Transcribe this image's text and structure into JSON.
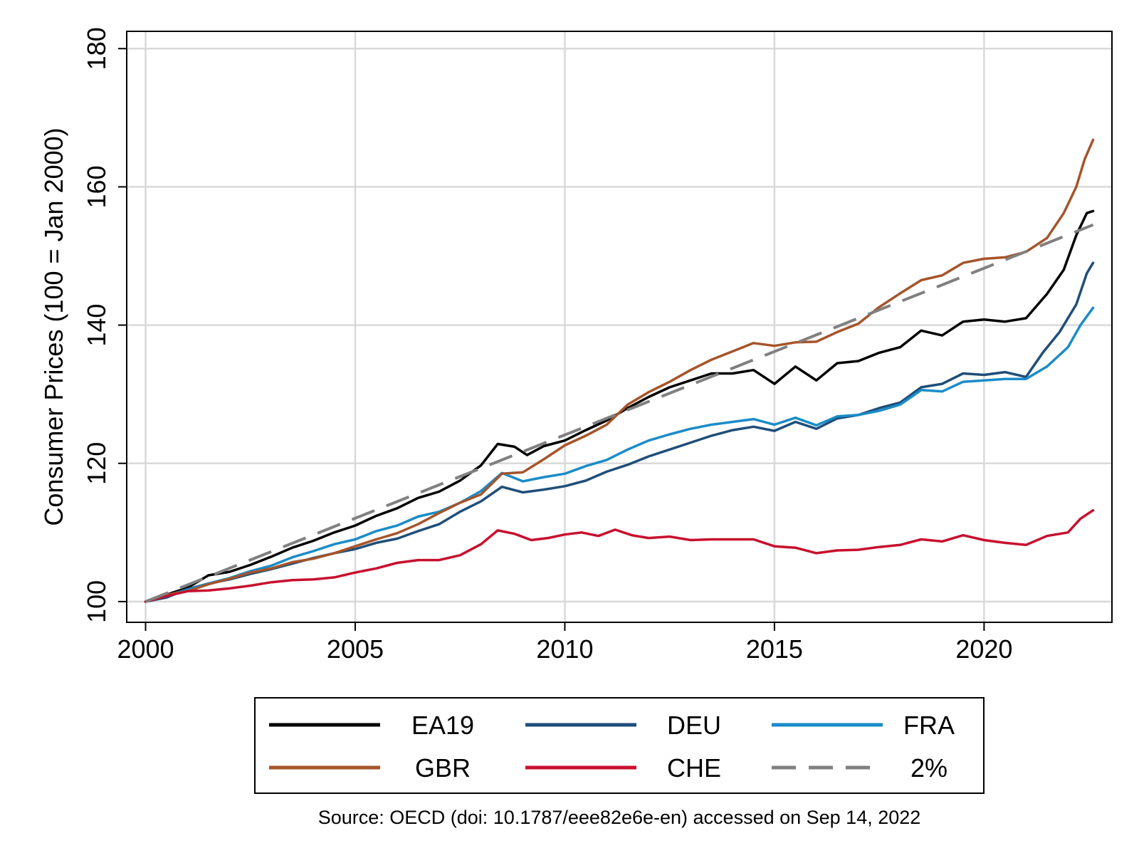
{
  "chart_data": {
    "type": "line",
    "title": "",
    "xlabel": "",
    "ylabel": "Consumer Prices (100 = Jan 2000)",
    "xlim": [
      1999.55,
      2023.05
    ],
    "ylim": [
      97,
      182.5
    ],
    "x_ticks": [
      2000,
      2005,
      2010,
      2015,
      2020
    ],
    "y_ticks": [
      100,
      120,
      140,
      160,
      180
    ],
    "grid": true,
    "legend_position": "bottom",
    "source": "Source: OECD (doi: 10.1787/eee82e6e-en) accessed on Sep 14, 2022",
    "series": [
      {
        "name": "EA19",
        "color": "#000000",
        "dash": false,
        "points": [
          [
            2000.0,
            100.0
          ],
          [
            2000.5,
            101.0
          ],
          [
            2001.0,
            102.0
          ],
          [
            2001.5,
            103.8
          ],
          [
            2002.0,
            104.3
          ],
          [
            2002.5,
            105.3
          ],
          [
            2003.0,
            106.5
          ],
          [
            2003.5,
            107.8
          ],
          [
            2004.0,
            108.8
          ],
          [
            2004.5,
            110.0
          ],
          [
            2005.0,
            111.0
          ],
          [
            2005.5,
            112.4
          ],
          [
            2006.0,
            113.5
          ],
          [
            2006.5,
            115.0
          ],
          [
            2007.0,
            115.9
          ],
          [
            2007.5,
            117.5
          ],
          [
            2008.0,
            119.7
          ],
          [
            2008.4,
            122.8
          ],
          [
            2008.8,
            122.4
          ],
          [
            2009.1,
            121.2
          ],
          [
            2009.5,
            122.5
          ],
          [
            2010.0,
            123.3
          ],
          [
            2010.5,
            124.8
          ],
          [
            2011.0,
            126.2
          ],
          [
            2011.5,
            128.0
          ],
          [
            2012.0,
            129.6
          ],
          [
            2012.5,
            131.0
          ],
          [
            2013.0,
            132.0
          ],
          [
            2013.5,
            133.0
          ],
          [
            2014.0,
            133.0
          ],
          [
            2014.5,
            133.5
          ],
          [
            2015.0,
            131.5
          ],
          [
            2015.5,
            134.0
          ],
          [
            2016.0,
            132.0
          ],
          [
            2016.5,
            134.5
          ],
          [
            2017.0,
            134.8
          ],
          [
            2017.5,
            136.0
          ],
          [
            2018.0,
            136.8
          ],
          [
            2018.5,
            139.2
          ],
          [
            2019.0,
            138.5
          ],
          [
            2019.5,
            140.5
          ],
          [
            2020.0,
            140.8
          ],
          [
            2020.5,
            140.5
          ],
          [
            2021.0,
            141.0
          ],
          [
            2021.5,
            144.5
          ],
          [
            2021.9,
            148.0
          ],
          [
            2022.2,
            153.0
          ],
          [
            2022.45,
            156.2
          ],
          [
            2022.6,
            156.5
          ]
        ]
      },
      {
        "name": "DEU",
        "color": "#1f4e79",
        "dash": false,
        "points": [
          [
            2000.0,
            100.0
          ],
          [
            2000.5,
            100.6
          ],
          [
            2001.0,
            101.8
          ],
          [
            2001.5,
            102.6
          ],
          [
            2002.0,
            103.2
          ],
          [
            2002.5,
            104.0
          ],
          [
            2003.0,
            104.7
          ],
          [
            2003.5,
            105.5
          ],
          [
            2004.0,
            106.3
          ],
          [
            2004.5,
            107.0
          ],
          [
            2005.0,
            107.6
          ],
          [
            2005.5,
            108.5
          ],
          [
            2006.0,
            109.1
          ],
          [
            2006.5,
            110.2
          ],
          [
            2007.0,
            111.2
          ],
          [
            2007.5,
            113.0
          ],
          [
            2008.0,
            114.5
          ],
          [
            2008.5,
            116.6
          ],
          [
            2009.0,
            115.8
          ],
          [
            2009.5,
            116.2
          ],
          [
            2010.0,
            116.7
          ],
          [
            2010.5,
            117.5
          ],
          [
            2011.0,
            118.8
          ],
          [
            2011.5,
            119.8
          ],
          [
            2012.0,
            121.0
          ],
          [
            2012.5,
            122.0
          ],
          [
            2013.0,
            123.0
          ],
          [
            2013.5,
            124.0
          ],
          [
            2014.0,
            124.8
          ],
          [
            2014.5,
            125.3
          ],
          [
            2015.0,
            124.7
          ],
          [
            2015.5,
            126.0
          ],
          [
            2016.0,
            125.0
          ],
          [
            2016.5,
            126.5
          ],
          [
            2017.0,
            127.0
          ],
          [
            2017.5,
            128.0
          ],
          [
            2018.0,
            128.8
          ],
          [
            2018.5,
            131.0
          ],
          [
            2019.0,
            131.5
          ],
          [
            2019.5,
            133.0
          ],
          [
            2020.0,
            132.8
          ],
          [
            2020.5,
            133.2
          ],
          [
            2021.0,
            132.5
          ],
          [
            2021.4,
            136.0
          ],
          [
            2021.8,
            139.0
          ],
          [
            2022.2,
            143.0
          ],
          [
            2022.45,
            147.5
          ],
          [
            2022.6,
            149.0
          ]
        ]
      },
      {
        "name": "FRA",
        "color": "#1a8cc8",
        "dash": false,
        "points": [
          [
            2000.0,
            100.0
          ],
          [
            2000.5,
            100.9
          ],
          [
            2001.0,
            101.7
          ],
          [
            2001.5,
            102.6
          ],
          [
            2002.0,
            103.4
          ],
          [
            2002.5,
            104.4
          ],
          [
            2003.0,
            105.2
          ],
          [
            2003.5,
            106.4
          ],
          [
            2004.0,
            107.3
          ],
          [
            2004.5,
            108.3
          ],
          [
            2005.0,
            109.0
          ],
          [
            2005.5,
            110.2
          ],
          [
            2006.0,
            111.0
          ],
          [
            2006.5,
            112.3
          ],
          [
            2007.0,
            113.0
          ],
          [
            2007.5,
            114.3
          ],
          [
            2008.0,
            116.0
          ],
          [
            2008.5,
            118.6
          ],
          [
            2009.0,
            117.4
          ],
          [
            2009.5,
            118.0
          ],
          [
            2010.0,
            118.5
          ],
          [
            2010.5,
            119.6
          ],
          [
            2011.0,
            120.5
          ],
          [
            2011.5,
            122.0
          ],
          [
            2012.0,
            123.3
          ],
          [
            2012.5,
            124.2
          ],
          [
            2013.0,
            125.0
          ],
          [
            2013.5,
            125.6
          ],
          [
            2014.0,
            126.0
          ],
          [
            2014.5,
            126.4
          ],
          [
            2015.0,
            125.6
          ],
          [
            2015.5,
            126.6
          ],
          [
            2016.0,
            125.5
          ],
          [
            2016.5,
            126.8
          ],
          [
            2017.0,
            127.0
          ],
          [
            2017.5,
            127.6
          ],
          [
            2018.0,
            128.5
          ],
          [
            2018.5,
            130.6
          ],
          [
            2019.0,
            130.4
          ],
          [
            2019.5,
            131.8
          ],
          [
            2020.0,
            132.0
          ],
          [
            2020.5,
            132.2
          ],
          [
            2021.0,
            132.2
          ],
          [
            2021.5,
            134.0
          ],
          [
            2022.0,
            136.8
          ],
          [
            2022.3,
            140.0
          ],
          [
            2022.6,
            142.5
          ]
        ]
      },
      {
        "name": "GBR",
        "color": "#a5542a",
        "dash": false,
        "points": [
          [
            2000.0,
            100.0
          ],
          [
            2000.5,
            101.0
          ],
          [
            2001.0,
            101.5
          ],
          [
            2001.5,
            102.5
          ],
          [
            2002.0,
            103.3
          ],
          [
            2002.5,
            104.2
          ],
          [
            2003.0,
            104.8
          ],
          [
            2003.5,
            105.7
          ],
          [
            2004.0,
            106.2
          ],
          [
            2004.5,
            107.0
          ],
          [
            2005.0,
            108.0
          ],
          [
            2005.5,
            109.0
          ],
          [
            2006.0,
            109.9
          ],
          [
            2006.5,
            111.2
          ],
          [
            2007.0,
            112.8
          ],
          [
            2007.5,
            114.3
          ],
          [
            2008.0,
            115.5
          ],
          [
            2008.5,
            118.5
          ],
          [
            2009.0,
            118.7
          ],
          [
            2009.5,
            120.6
          ],
          [
            2010.0,
            122.6
          ],
          [
            2010.5,
            124.0
          ],
          [
            2011.0,
            125.6
          ],
          [
            2011.5,
            128.5
          ],
          [
            2012.0,
            130.3
          ],
          [
            2012.5,
            131.8
          ],
          [
            2013.0,
            133.5
          ],
          [
            2013.5,
            135.0
          ],
          [
            2014.0,
            136.2
          ],
          [
            2014.5,
            137.4
          ],
          [
            2015.0,
            137.0
          ],
          [
            2015.5,
            137.5
          ],
          [
            2016.0,
            137.6
          ],
          [
            2016.5,
            139.0
          ],
          [
            2017.0,
            140.2
          ],
          [
            2017.5,
            142.6
          ],
          [
            2018.0,
            144.6
          ],
          [
            2018.5,
            146.5
          ],
          [
            2019.0,
            147.2
          ],
          [
            2019.5,
            149.0
          ],
          [
            2020.0,
            149.6
          ],
          [
            2020.5,
            149.8
          ],
          [
            2021.0,
            150.6
          ],
          [
            2021.5,
            152.6
          ],
          [
            2021.9,
            156.2
          ],
          [
            2022.2,
            160.0
          ],
          [
            2022.4,
            164.0
          ],
          [
            2022.6,
            166.8
          ]
        ]
      },
      {
        "name": "CHE",
        "color": "#c8102e",
        "dash": false,
        "points": [
          [
            2000.0,
            100.0
          ],
          [
            2000.5,
            100.8
          ],
          [
            2001.0,
            101.5
          ],
          [
            2001.5,
            101.6
          ],
          [
            2002.0,
            101.9
          ],
          [
            2002.5,
            102.3
          ],
          [
            2003.0,
            102.8
          ],
          [
            2003.5,
            103.1
          ],
          [
            2004.0,
            103.2
          ],
          [
            2004.5,
            103.5
          ],
          [
            2005.0,
            104.2
          ],
          [
            2005.5,
            104.8
          ],
          [
            2006.0,
            105.6
          ],
          [
            2006.5,
            106.0
          ],
          [
            2007.0,
            106.0
          ],
          [
            2007.5,
            106.7
          ],
          [
            2008.0,
            108.3
          ],
          [
            2008.4,
            110.3
          ],
          [
            2008.8,
            109.8
          ],
          [
            2009.2,
            108.9
          ],
          [
            2009.6,
            109.2
          ],
          [
            2010.0,
            109.7
          ],
          [
            2010.4,
            110.0
          ],
          [
            2010.8,
            109.5
          ],
          [
            2011.2,
            110.4
          ],
          [
            2011.6,
            109.6
          ],
          [
            2012.0,
            109.2
          ],
          [
            2012.5,
            109.4
          ],
          [
            2013.0,
            108.9
          ],
          [
            2013.5,
            109.0
          ],
          [
            2014.0,
            109.0
          ],
          [
            2014.5,
            109.0
          ],
          [
            2015.0,
            108.0
          ],
          [
            2015.5,
            107.8
          ],
          [
            2016.0,
            107.0
          ],
          [
            2016.5,
            107.4
          ],
          [
            2017.0,
            107.5
          ],
          [
            2017.5,
            107.9
          ],
          [
            2018.0,
            108.2
          ],
          [
            2018.5,
            109.0
          ],
          [
            2019.0,
            108.7
          ],
          [
            2019.5,
            109.6
          ],
          [
            2020.0,
            108.9
          ],
          [
            2020.5,
            108.5
          ],
          [
            2021.0,
            108.2
          ],
          [
            2021.5,
            109.5
          ],
          [
            2022.0,
            110.0
          ],
          [
            2022.3,
            112.0
          ],
          [
            2022.6,
            113.2
          ]
        ]
      },
      {
        "name": "2%",
        "color": "#808080",
        "dash": true,
        "points": [
          [
            2000.0,
            100.0
          ],
          [
            2022.6,
            154.5
          ]
        ]
      }
    ]
  }
}
